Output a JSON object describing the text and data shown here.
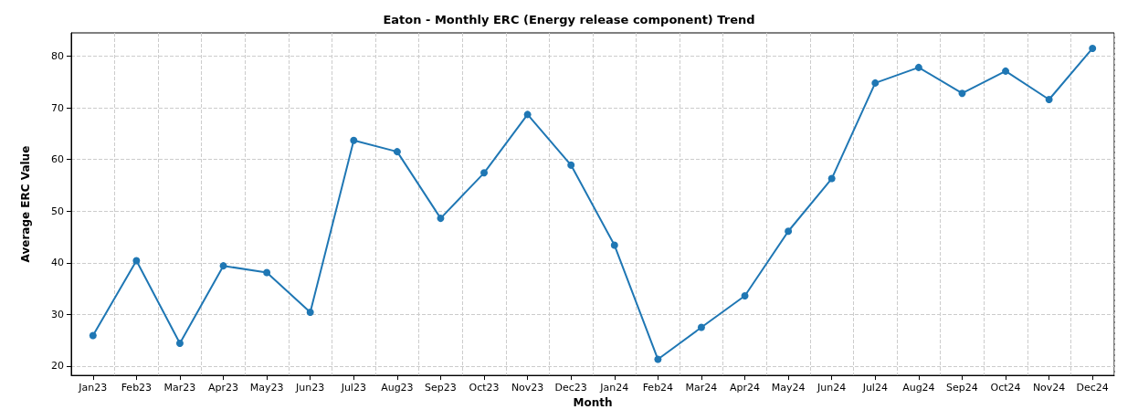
{
  "chart_data": {
    "type": "line",
    "title": "Eaton - Monthly ERC (Energy release component) Trend",
    "xlabel": "Month",
    "ylabel": "Average ERC Value",
    "categories": [
      "Jan23",
      "Feb23",
      "Mar23",
      "Apr23",
      "May23",
      "Jun23",
      "Jul23",
      "Aug23",
      "Sep23",
      "Oct23",
      "Nov23",
      "Dec23",
      "Jan24",
      "Feb24",
      "Mar24",
      "Apr24",
      "May24",
      "Jun24",
      "Jul24",
      "Aug24",
      "Sep24",
      "Oct24",
      "Nov24",
      "Dec24"
    ],
    "series": [
      {
        "color": "#1f77b4",
        "values": [
          25.9,
          40.4,
          24.4,
          39.4,
          38.1,
          30.4,
          63.7,
          61.5,
          48.6,
          57.4,
          68.7,
          58.9,
          43.4,
          21.3,
          27.5,
          33.6,
          46.1,
          56.3,
          74.8,
          77.8,
          72.8,
          77.1,
          71.6,
          81.5
        ]
      }
    ],
    "ylim": [
      18.2,
      84.5
    ],
    "yticks": [
      20,
      30,
      40,
      50,
      60,
      70,
      80
    ],
    "grid": true,
    "marker": "circle",
    "line_style": "solid"
  }
}
